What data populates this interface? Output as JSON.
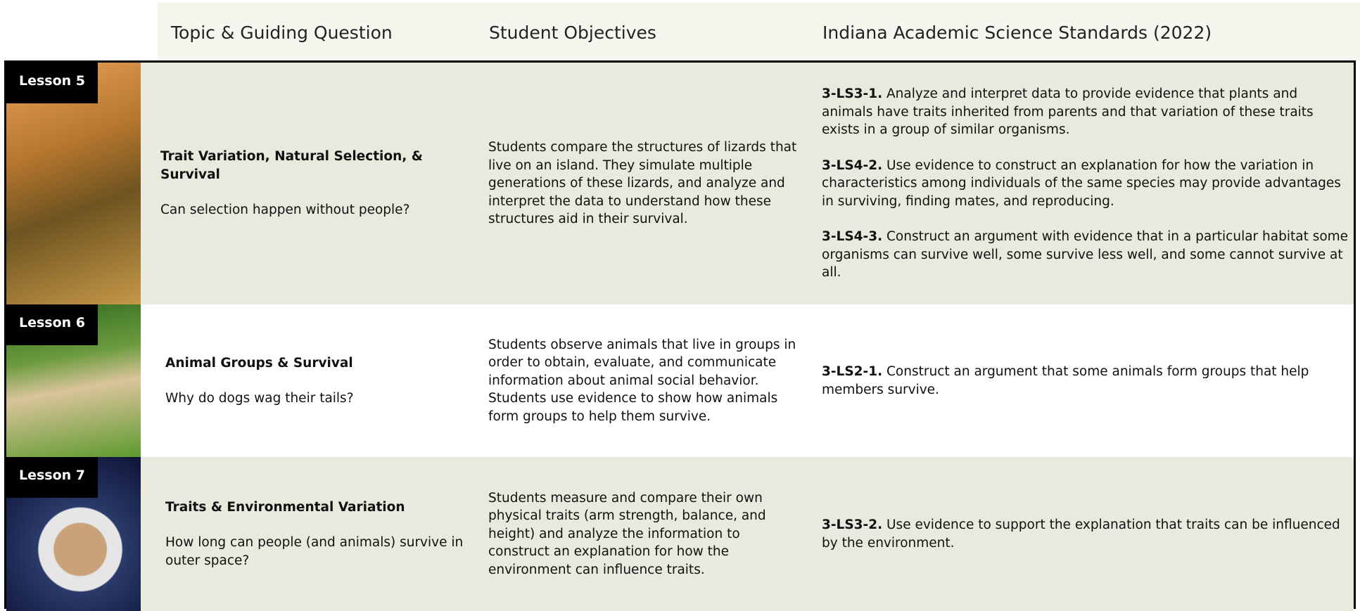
{
  "header": {
    "columns": [
      "Topic & Guiding Question",
      "Student Objectives",
      "Indiana Academic Science Standards (2022)"
    ]
  },
  "rows": [
    {
      "lesson": "Lesson 5",
      "topic": "Trait Variation, Natural Selection, & Survival",
      "question": "Can selection happen without people?",
      "objectives": "Students compare the structures of lizards that live on an island. They simulate multiple generations of these lizards, and analyze and interpret the data to understand how these structures aid in their survival.",
      "standards": [
        {
          "code": "3-LS3-1.",
          "text": "Analyze and interpret data to provide evidence that plants and animals have traits inherited from parents and that variation of these traits exists in a group of similar organisms."
        },
        {
          "code": "3-LS4-2.",
          "text": "Use evidence to construct an explanation for how the variation in characteristics among individuals of the same species may provide advantages in surviving, finding mates, and reproducing."
        },
        {
          "code": "3-LS4-3.",
          "text": "Construct an argument with evidence that in a particular habitat some organisms can survive well, some survive less well, and some cannot survive at all."
        }
      ]
    },
    {
      "lesson": "Lesson 6",
      "topic": "Animal Groups & Survival",
      "question": "Why do dogs wag their tails?",
      "objectives": "Students observe animals that live in groups in order to obtain, evaluate, and communicate information about animal social behavior. Students use evidence to show how animals form groups to help them survive.",
      "standards": [
        {
          "code": "3-LS2-1.",
          "text": "Construct an argument that some animals form groups that help members survive."
        }
      ]
    },
    {
      "lesson": "Lesson 7",
      "topic": "Traits & Environmental Variation",
      "question": "How long can people (and animals) survive in outer space?",
      "objectives": "Students measure and compare their own physical traits (arm strength, balance, and height) and analyze the information to construct an explanation for how the environment can influence traits.",
      "standards": [
        {
          "code": "3-LS3-2.",
          "text": "Use evidence to support the explanation that traits can be influenced by the environment."
        }
      ]
    }
  ]
}
